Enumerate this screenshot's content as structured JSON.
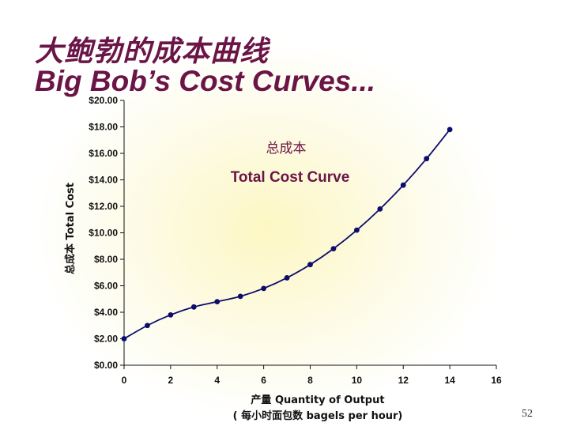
{
  "slide": {
    "title_cn": "大鲍勃的成本曲线",
    "title_en": "Big Bob’s Cost Curves...",
    "page_number": "52"
  },
  "colors": {
    "title": "#6b1547",
    "curve": "#0d0d6b",
    "axis": "#111111"
  },
  "chart_data": {
    "type": "line",
    "x": [
      0,
      1,
      2,
      3,
      4,
      5,
      6,
      7,
      8,
      9,
      10,
      11,
      12,
      13,
      14
    ],
    "series": [
      {
        "values": [
          2.0,
          3.0,
          3.8,
          4.4,
          4.8,
          5.2,
          5.8,
          6.6,
          7.6,
          8.8,
          10.2,
          11.8,
          13.6,
          15.6,
          17.8
        ]
      }
    ],
    "xlim": [
      0,
      16
    ],
    "ylim": [
      0,
      20
    ],
    "x_ticks": [
      "0",
      "2",
      "4",
      "6",
      "8",
      "10",
      "12",
      "14",
      "16"
    ],
    "y_ticks": [
      "$0.00",
      "$2.00",
      "$4.00",
      "$6.00",
      "$8.00",
      "$10.00",
      "$12.00",
      "$14.00",
      "$16.00",
      "$18.00",
      "$20.00"
    ],
    "xlabel_line1": "产量  Quantity of Output",
    "xlabel_line2": "( 每小时面包数  bagels per hour)",
    "ylabel": "总成本  Total Cost",
    "annotation_cn": "总成本",
    "annotation_en": "Total Cost Curve",
    "grid": false
  }
}
